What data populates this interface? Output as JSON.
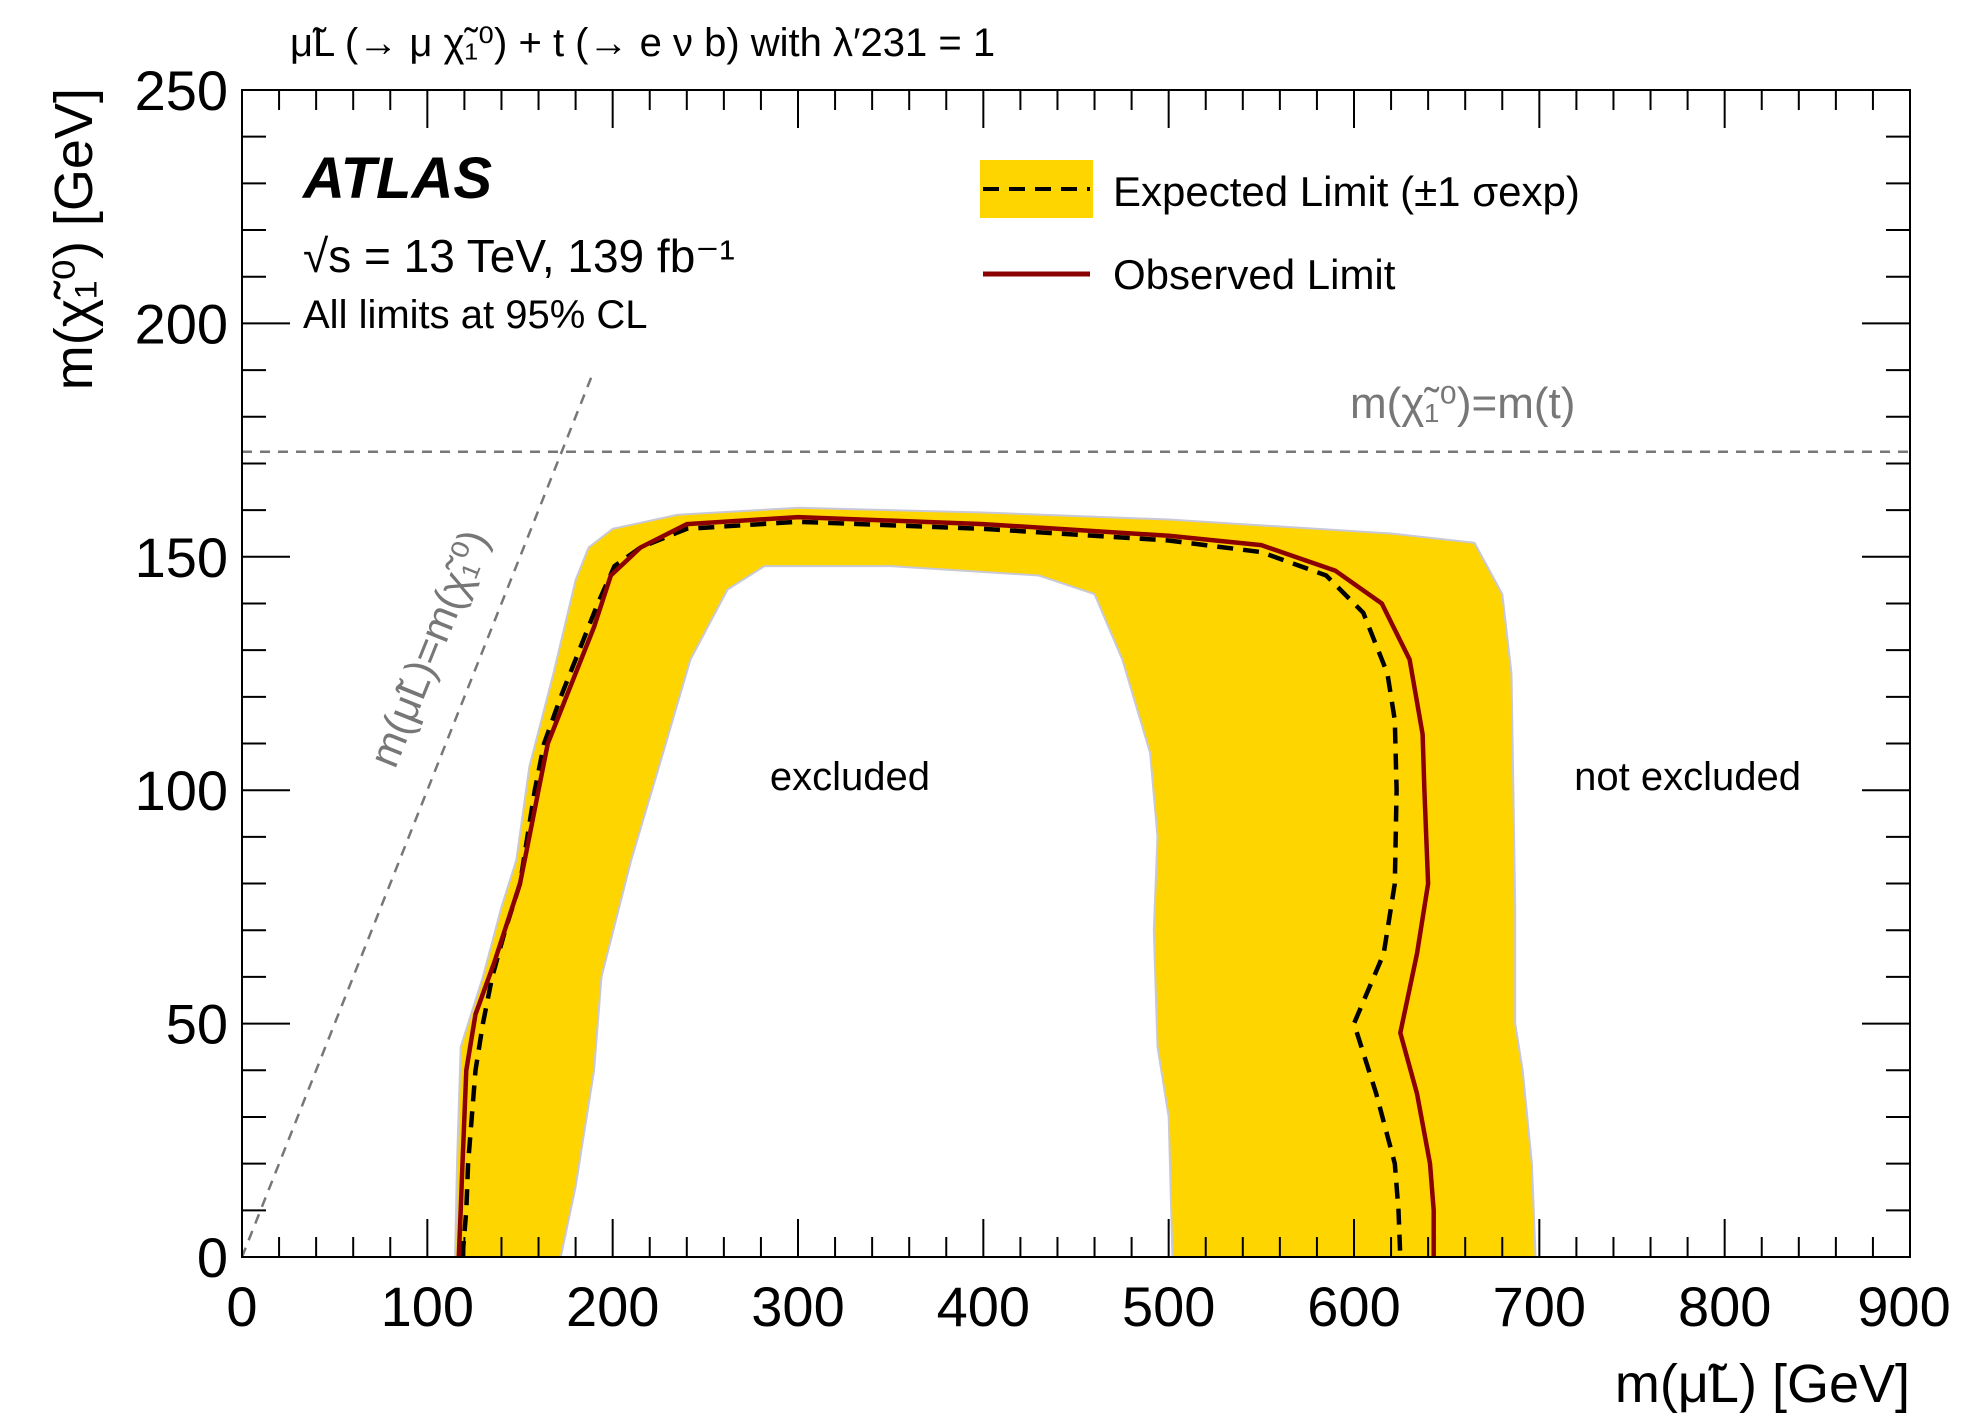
{
  "chart_data": {
    "type": "line",
    "title": "μ̃L (→ μ χ̃₁⁰) + t (→ e ν b) with λ′231 = 1",
    "xlabel": "m(μ̃L) [GeV]",
    "ylabel": "m(χ̃₁⁰) [GeV]",
    "xlim": [
      0,
      900
    ],
    "ylim": [
      0,
      250
    ],
    "x_ticks": [
      "0",
      "100",
      "200",
      "300",
      "400",
      "500",
      "600",
      "700",
      "800",
      "900"
    ],
    "y_ticks": [
      "0",
      "50",
      "100",
      "150",
      "200",
      "250"
    ],
    "experiment_label": "ATLAS",
    "energy_label": "√s = 13 TeV, 139 fb⁻¹",
    "cl_label": "All limits at 95% CL",
    "legend_position": "top-right",
    "colors": {
      "band": "#ffd500",
      "observed": "#8b0000",
      "expected": "#000000",
      "guide": "#777777"
    },
    "series": [
      {
        "name": "Expected Limit (±1 σexp)",
        "style": "dashed-with-band",
        "points": [
          [
            119,
            0
          ],
          [
            121,
            10
          ],
          [
            122,
            20
          ],
          [
            124,
            30
          ],
          [
            126,
            40
          ],
          [
            130,
            50
          ],
          [
            135,
            60
          ],
          [
            142,
            70
          ],
          [
            150,
            80
          ],
          [
            154,
            90
          ],
          [
            158,
            100
          ],
          [
            163,
            110
          ],
          [
            172,
            120
          ],
          [
            182,
            130
          ],
          [
            192,
            140
          ],
          [
            201,
            148
          ],
          [
            215,
            152
          ],
          [
            240,
            156
          ],
          [
            300,
            157.5
          ],
          [
            400,
            156
          ],
          [
            500,
            153.5
          ],
          [
            550,
            151
          ],
          [
            585,
            146
          ],
          [
            605,
            138
          ],
          [
            618,
            125
          ],
          [
            622,
            115
          ],
          [
            623,
            100
          ],
          [
            622,
            80
          ],
          [
            616,
            65
          ],
          [
            600,
            50
          ],
          [
            612,
            35
          ],
          [
            622,
            20
          ],
          [
            624,
            10
          ],
          [
            625,
            0
          ]
        ]
      },
      {
        "name": "Expected −1σ / +1σ band",
        "style": "band",
        "outer": [
          [
            115,
            0
          ],
          [
            116,
            20
          ],
          [
            118,
            45
          ],
          [
            130,
            60
          ],
          [
            140,
            75
          ],
          [
            148,
            85
          ],
          [
            155,
            105
          ],
          [
            168,
            125
          ],
          [
            180,
            145
          ],
          [
            187,
            152
          ],
          [
            200,
            156
          ],
          [
            235,
            159
          ],
          [
            300,
            160.5
          ],
          [
            400,
            159.5
          ],
          [
            500,
            158
          ],
          [
            560,
            156.5
          ],
          [
            620,
            155
          ],
          [
            665,
            153
          ],
          [
            680,
            142
          ],
          [
            685,
            125
          ],
          [
            686,
            100
          ],
          [
            687,
            75
          ],
          [
            687,
            50
          ],
          [
            691,
            40
          ],
          [
            696,
            20
          ],
          [
            698,
            0
          ]
        ],
        "inner": [
          [
            172,
            0
          ],
          [
            180,
            15
          ],
          [
            190,
            40
          ],
          [
            194,
            60
          ],
          [
            210,
            85
          ],
          [
            225,
            105
          ],
          [
            242,
            128
          ],
          [
            262,
            143
          ],
          [
            282,
            148
          ],
          [
            350,
            148
          ],
          [
            430,
            146
          ],
          [
            460,
            142
          ],
          [
            475,
            128
          ],
          [
            490,
            108
          ],
          [
            494,
            90
          ],
          [
            492,
            70
          ],
          [
            494,
            45
          ],
          [
            500,
            30
          ],
          [
            502,
            0
          ]
        ]
      },
      {
        "name": "Observed Limit",
        "style": "solid",
        "points": [
          [
            117,
            0
          ],
          [
            118,
            10
          ],
          [
            119,
            20
          ],
          [
            120,
            30
          ],
          [
            121,
            40
          ],
          [
            126,
            52
          ],
          [
            136,
            63
          ],
          [
            150,
            80
          ],
          [
            155,
            90
          ],
          [
            160,
            100
          ],
          [
            165,
            110
          ],
          [
            175,
            120
          ],
          [
            190,
            135
          ],
          [
            199,
            146
          ],
          [
            215,
            152
          ],
          [
            240,
            157
          ],
          [
            300,
            158.5
          ],
          [
            400,
            157
          ],
          [
            500,
            154.5
          ],
          [
            550,
            152.5
          ],
          [
            590,
            147
          ],
          [
            615,
            140
          ],
          [
            630,
            128
          ],
          [
            637,
            112
          ],
          [
            638,
            100
          ],
          [
            640,
            80
          ],
          [
            634,
            65
          ],
          [
            625,
            48
          ],
          [
            634,
            35
          ],
          [
            641,
            20
          ],
          [
            643,
            10
          ],
          [
            643,
            0
          ]
        ]
      }
    ],
    "reference_lines": [
      {
        "label": "m(χ̃₁⁰)=m(t)",
        "type": "horizontal",
        "y": 172.5
      },
      {
        "label": "m(μ̃L)=m(χ̃₁⁰)",
        "type": "diagonal",
        "from": [
          0,
          0
        ],
        "to": [
          189,
          189
        ]
      }
    ],
    "region_labels": [
      {
        "text": "excluded",
        "x": 328,
        "y": 103
      },
      {
        "text": "not excluded",
        "x": 780,
        "y": 103
      }
    ]
  }
}
